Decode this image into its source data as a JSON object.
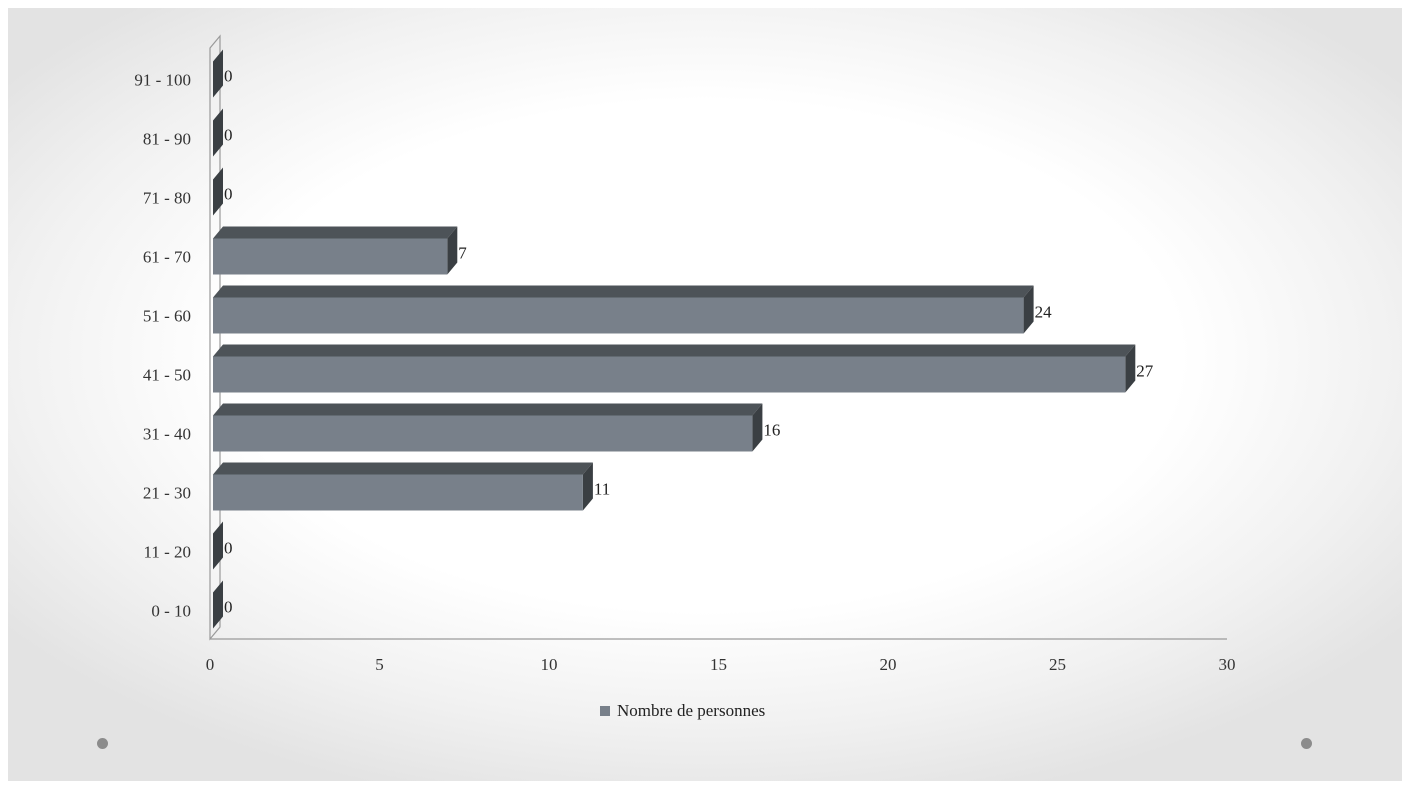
{
  "chart_data": {
    "type": "bar",
    "orientation": "horizontal",
    "style": "3d",
    "categories": [
      "0 - 10",
      "11 - 20",
      "21 - 30",
      "31 - 40",
      "41 - 50",
      "51 - 60",
      "61 - 70",
      "71 - 80",
      "81 - 90",
      "91 - 100"
    ],
    "series": [
      {
        "name": "Nombre de personnes",
        "values": [
          0,
          0,
          11,
          16,
          27,
          24,
          7,
          0,
          0,
          0
        ],
        "color": "#78808a"
      }
    ],
    "xticks": [
      "0",
      "5",
      "10",
      "15",
      "20",
      "25",
      "30"
    ],
    "xlim": [
      0,
      30
    ],
    "grid": false,
    "legend": "bottom",
    "data_labels": true
  },
  "decor": {
    "dot_color": "#8c8c8c"
  }
}
